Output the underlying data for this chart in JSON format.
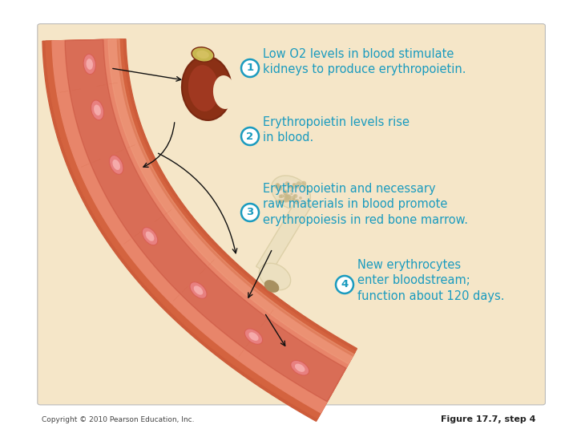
{
  "bg_color": "#f5e6c8",
  "text_color": "#1a9bbf",
  "copyright": "Copyright © 2010 Pearson Education, Inc.",
  "figure_label": "Figure 17.7, step 4",
  "step1_text": "Low O2 levels in blood stimulate\nkidneys to produce erythropoietin.",
  "step2_text": "Erythropoietin levels rise\nin blood.",
  "step3_text": "Erythropoietin and necessary\nraw materials in blood promote\nerythropoiesis in red bone marrow.",
  "step4_text": "New erythrocytes\nenter bloodstream;\nfunction about 120 days.",
  "vessel_outer": "#cd5c3a",
  "vessel_mid": "#d4633f",
  "vessel_light": "#e8856a",
  "vessel_highlight": "#f0a080",
  "vessel_wall_inner": "#c04830",
  "vessel_lumen": "#b83828",
  "rbc_outer": "#d96055",
  "rbc_mid": "#e88080",
  "rbc_inner": "#f5aaaa",
  "kidney_dark": "#7a2810",
  "kidney_base": "#8b3015",
  "kidney_mid": "#a03820",
  "kidney_light": "#b85030",
  "kidney_pale": "#c87848",
  "adrenal_color": "#c8b850",
  "bone_outer": "#ddd0a8",
  "bone_inner": "#ece0c0",
  "bone_marrow": "#f0e0c8",
  "bone_stipple": "#c8b888",
  "bone_root": "#a89060",
  "arrow_color": "#111111"
}
